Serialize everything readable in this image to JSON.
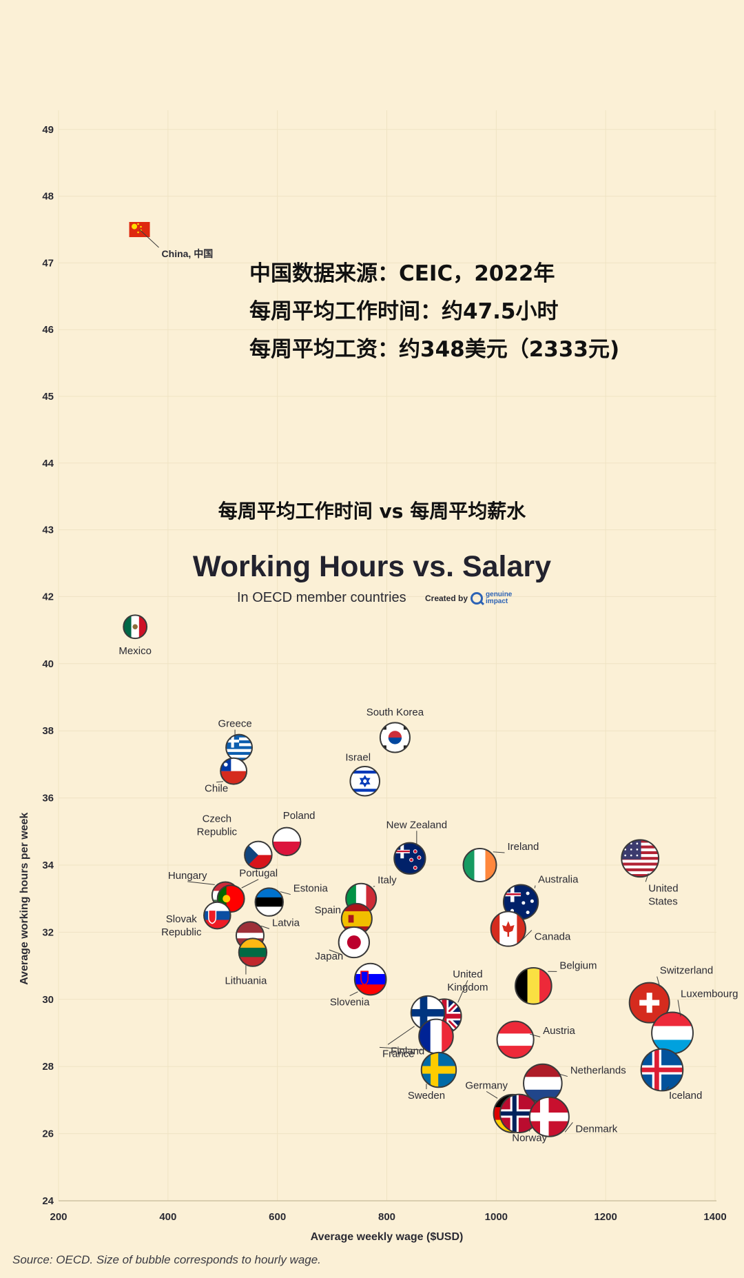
{
  "annotation": {
    "line1": "中国数据来源：CEIC，2022年",
    "line2": "每周平均工作时间：约47.5小时",
    "line3": "每周平均工资：约348美元（2333元)"
  },
  "header": {
    "cn_title": "每周平均工作时间 vs 每周平均薪水",
    "title": "Working Hours vs. Salary",
    "subtitle": "In OECD member countries",
    "credit_prefix": "Created by",
    "credit_brand_1": "genuine",
    "credit_brand_2": "impact"
  },
  "source": "Source: OECD. Size of bubble corresponds to hourly wage.",
  "chart_data": {
    "type": "scatter",
    "title": "Working Hours vs. Salary",
    "subtitle": "In OECD member countries",
    "xlabel": "Average weekly wage ($USD)",
    "ylabel": "Average working hours per week",
    "xlim": [
      200,
      1400
    ],
    "ylim": [
      24,
      50
    ],
    "xticks": [
      200,
      400,
      600,
      800,
      1000,
      1200,
      1400
    ],
    "yticks": [
      24,
      26,
      28,
      30,
      32,
      34,
      36,
      38,
      40,
      42,
      43,
      44,
      45,
      46,
      47,
      48,
      49
    ],
    "grid": true,
    "points": [
      {
        "label": "China, 中国",
        "x": 348,
        "y": 47.5,
        "flag": "china"
      },
      {
        "label": "Mexico",
        "x": 340,
        "y": 41.1,
        "flag": "mexico"
      },
      {
        "label": "Greece",
        "x": 530,
        "y": 37.5,
        "flag": "greece"
      },
      {
        "label": "Chile",
        "x": 520,
        "y": 36.8,
        "flag": "chile"
      },
      {
        "label": "South Korea",
        "x": 815,
        "y": 37.8,
        "flag": "south-korea"
      },
      {
        "label": "Israel",
        "x": 760,
        "y": 36.5,
        "flag": "israel"
      },
      {
        "label": "Czech Republic",
        "x": 565,
        "y": 34.3,
        "flag": "czech"
      },
      {
        "label": "Poland",
        "x": 617,
        "y": 34.7,
        "flag": "poland"
      },
      {
        "label": "New Zealand",
        "x": 842,
        "y": 34.2,
        "flag": "new-zealand"
      },
      {
        "label": "Ireland",
        "x": 970,
        "y": 34.0,
        "flag": "ireland"
      },
      {
        "label": "United States",
        "x": 1263,
        "y": 34.2,
        "flag": "united-states"
      },
      {
        "label": "Hungary",
        "x": 505,
        "y": 33.1,
        "flag": "hungary"
      },
      {
        "label": "Portugal",
        "x": 515,
        "y": 33.0,
        "flag": "portugal"
      },
      {
        "label": "Estonia",
        "x": 585,
        "y": 32.9,
        "flag": "estonia"
      },
      {
        "label": "Italy",
        "x": 753,
        "y": 33.0,
        "flag": "italy"
      },
      {
        "label": "Australia",
        "x": 1045,
        "y": 32.9,
        "flag": "australia"
      },
      {
        "label": "Slovak Republic",
        "x": 490,
        "y": 32.5,
        "flag": "slovakia"
      },
      {
        "label": "Spain",
        "x": 745,
        "y": 32.4,
        "flag": "spain"
      },
      {
        "label": "Canada",
        "x": 1022,
        "y": 32.1,
        "flag": "canada"
      },
      {
        "label": "Latvia",
        "x": 550,
        "y": 31.9,
        "flag": "latvia"
      },
      {
        "label": "Japan",
        "x": 740,
        "y": 31.7,
        "flag": "japan"
      },
      {
        "label": "Lithuania",
        "x": 555,
        "y": 31.4,
        "flag": "lithuania"
      },
      {
        "label": "Slovenia",
        "x": 770,
        "y": 30.6,
        "flag": "slovenia"
      },
      {
        "label": "Belgium",
        "x": 1068,
        "y": 30.4,
        "flag": "belgium"
      },
      {
        "label": "Switzerland",
        "x": 1280,
        "y": 29.9,
        "flag": "switzerland"
      },
      {
        "label": "United Kingdom",
        "x": 905,
        "y": 29.5,
        "flag": "united-kingdom"
      },
      {
        "label": "Finland",
        "x": 875,
        "y": 29.6,
        "flag": "finland"
      },
      {
        "label": "Luxembourg",
        "x": 1322,
        "y": 29.0,
        "flag": "luxembourg"
      },
      {
        "label": "France",
        "x": 890,
        "y": 28.9,
        "flag": "france"
      },
      {
        "label": "Austria",
        "x": 1035,
        "y": 28.8,
        "flag": "austria"
      },
      {
        "label": "Sweden",
        "x": 895,
        "y": 27.9,
        "flag": "sweden"
      },
      {
        "label": "Iceland",
        "x": 1303,
        "y": 27.9,
        "flag": "iceland"
      },
      {
        "label": "Netherlands",
        "x": 1085,
        "y": 27.5,
        "flag": "netherlands"
      },
      {
        "label": "Germany",
        "x": 1030,
        "y": 26.6,
        "flag": "germany"
      },
      {
        "label": "Norway",
        "x": 1042,
        "y": 26.6,
        "flag": "norway"
      },
      {
        "label": "Denmark",
        "x": 1097,
        "y": 26.5,
        "flag": "denmark"
      }
    ]
  }
}
